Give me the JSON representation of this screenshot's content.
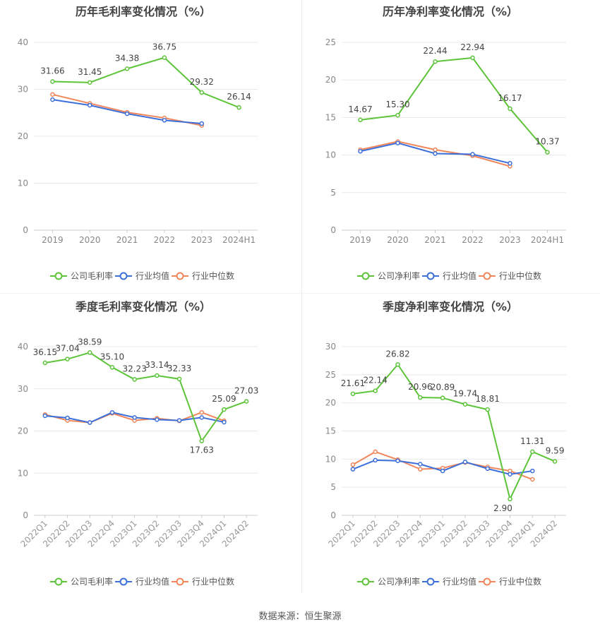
{
  "source": "数据来源：恒生聚源",
  "colors": {
    "company": "#5dc43a",
    "avg": "#3d6fd9",
    "median": "#f0865a"
  },
  "chart_data": [
    {
      "type": "line",
      "title": "历年毛利率变化情况（%）",
      "categories": [
        "2019",
        "2020",
        "2021",
        "2022",
        "2023",
        "2024H1"
      ],
      "ylim": [
        0,
        40
      ],
      "yticks": [
        0,
        10,
        20,
        30,
        40
      ],
      "grid": true,
      "legend_position": "bottom",
      "series": [
        {
          "name": "公司毛利率",
          "role": "company",
          "values": [
            31.66,
            31.45,
            34.38,
            36.75,
            29.32,
            26.14
          ],
          "labels": [
            "31.66",
            "31.45",
            "34.38",
            "36.75",
            "29.32",
            "26.14"
          ]
        },
        {
          "name": "行业均值",
          "role": "avg",
          "values": [
            27.8,
            26.6,
            24.8,
            23.4,
            22.7,
            null
          ]
        },
        {
          "name": "行业中位数",
          "role": "median",
          "values": [
            28.9,
            27.0,
            25.1,
            23.9,
            22.3,
            null
          ]
        }
      ]
    },
    {
      "type": "line",
      "title": "历年净利率变化情况（%）",
      "categories": [
        "2019",
        "2020",
        "2021",
        "2022",
        "2023",
        "2024H1"
      ],
      "ylim": [
        0,
        25
      ],
      "yticks": [
        0,
        5,
        10,
        15,
        20,
        25
      ],
      "grid": true,
      "legend_position": "bottom",
      "series": [
        {
          "name": "公司净利率",
          "role": "company",
          "values": [
            14.67,
            15.3,
            22.44,
            22.94,
            16.17,
            10.37
          ],
          "labels": [
            "14.67",
            "15.30",
            "22.44",
            "22.94",
            "16.17",
            "10.37"
          ]
        },
        {
          "name": "行业均值",
          "role": "avg",
          "values": [
            10.5,
            11.6,
            10.2,
            10.1,
            8.9,
            null
          ]
        },
        {
          "name": "行业中位数",
          "role": "median",
          "values": [
            10.7,
            11.8,
            10.7,
            9.9,
            8.5,
            null
          ]
        }
      ]
    },
    {
      "type": "line",
      "title": "季度毛利率变化情况（%）",
      "categories": [
        "2022Q1",
        "2022Q2",
        "2022Q3",
        "2022Q4",
        "2023Q1",
        "2023Q2",
        "2023Q3",
        "2023Q4",
        "2024Q1",
        "2024Q2"
      ],
      "rotate_ticks": true,
      "ylim": [
        0,
        40
      ],
      "yticks": [
        0,
        10,
        20,
        30,
        40
      ],
      "grid": true,
      "legend_position": "bottom",
      "series": [
        {
          "name": "公司毛利率",
          "role": "company",
          "values": [
            36.15,
            37.04,
            38.59,
            35.1,
            32.23,
            33.14,
            32.33,
            17.63,
            25.09,
            27.03
          ],
          "labels": [
            "36.15",
            "37.04",
            "38.59",
            "35.10",
            "32.23",
            "33.14",
            "32.33",
            "17.63",
            "25.09",
            "27.03"
          ]
        },
        {
          "name": "行业均值",
          "role": "avg",
          "values": [
            23.6,
            23.1,
            22.0,
            24.4,
            23.2,
            22.7,
            22.5,
            23.2,
            22.1,
            null
          ]
        },
        {
          "name": "行业中位数",
          "role": "median",
          "values": [
            23.9,
            22.5,
            22.0,
            24.2,
            22.5,
            23.0,
            22.4,
            24.4,
            22.4,
            null
          ]
        }
      ]
    },
    {
      "type": "line",
      "title": "季度净利率变化情况（%）",
      "categories": [
        "2022Q1",
        "2022Q2",
        "2022Q3",
        "2022Q4",
        "2023Q1",
        "2023Q2",
        "2023Q3",
        "2023Q4",
        "2024Q1",
        "2024Q2"
      ],
      "rotate_ticks": true,
      "ylim": [
        0,
        30
      ],
      "yticks": [
        0,
        5,
        10,
        15,
        20,
        25,
        30
      ],
      "grid": true,
      "legend_position": "bottom",
      "series": [
        {
          "name": "公司净利率",
          "role": "company",
          "values": [
            21.61,
            22.14,
            26.82,
            20.96,
            20.89,
            19.74,
            18.81,
            2.9,
            11.31,
            9.59
          ],
          "labels": [
            "21.61",
            "22.14",
            "26.82",
            "20.96",
            "20.89",
            "19.74",
            "18.81",
            "2.90",
            "11.31",
            "9.59"
          ]
        },
        {
          "name": "行业均值",
          "role": "avg",
          "values": [
            8.2,
            9.8,
            9.7,
            9.1,
            7.9,
            9.5,
            8.3,
            7.3,
            7.9,
            null
          ]
        },
        {
          "name": "行业中位数",
          "role": "median",
          "values": [
            9.0,
            11.3,
            9.9,
            8.2,
            8.4,
            9.4,
            8.6,
            7.9,
            6.4,
            null
          ]
        }
      ]
    }
  ]
}
